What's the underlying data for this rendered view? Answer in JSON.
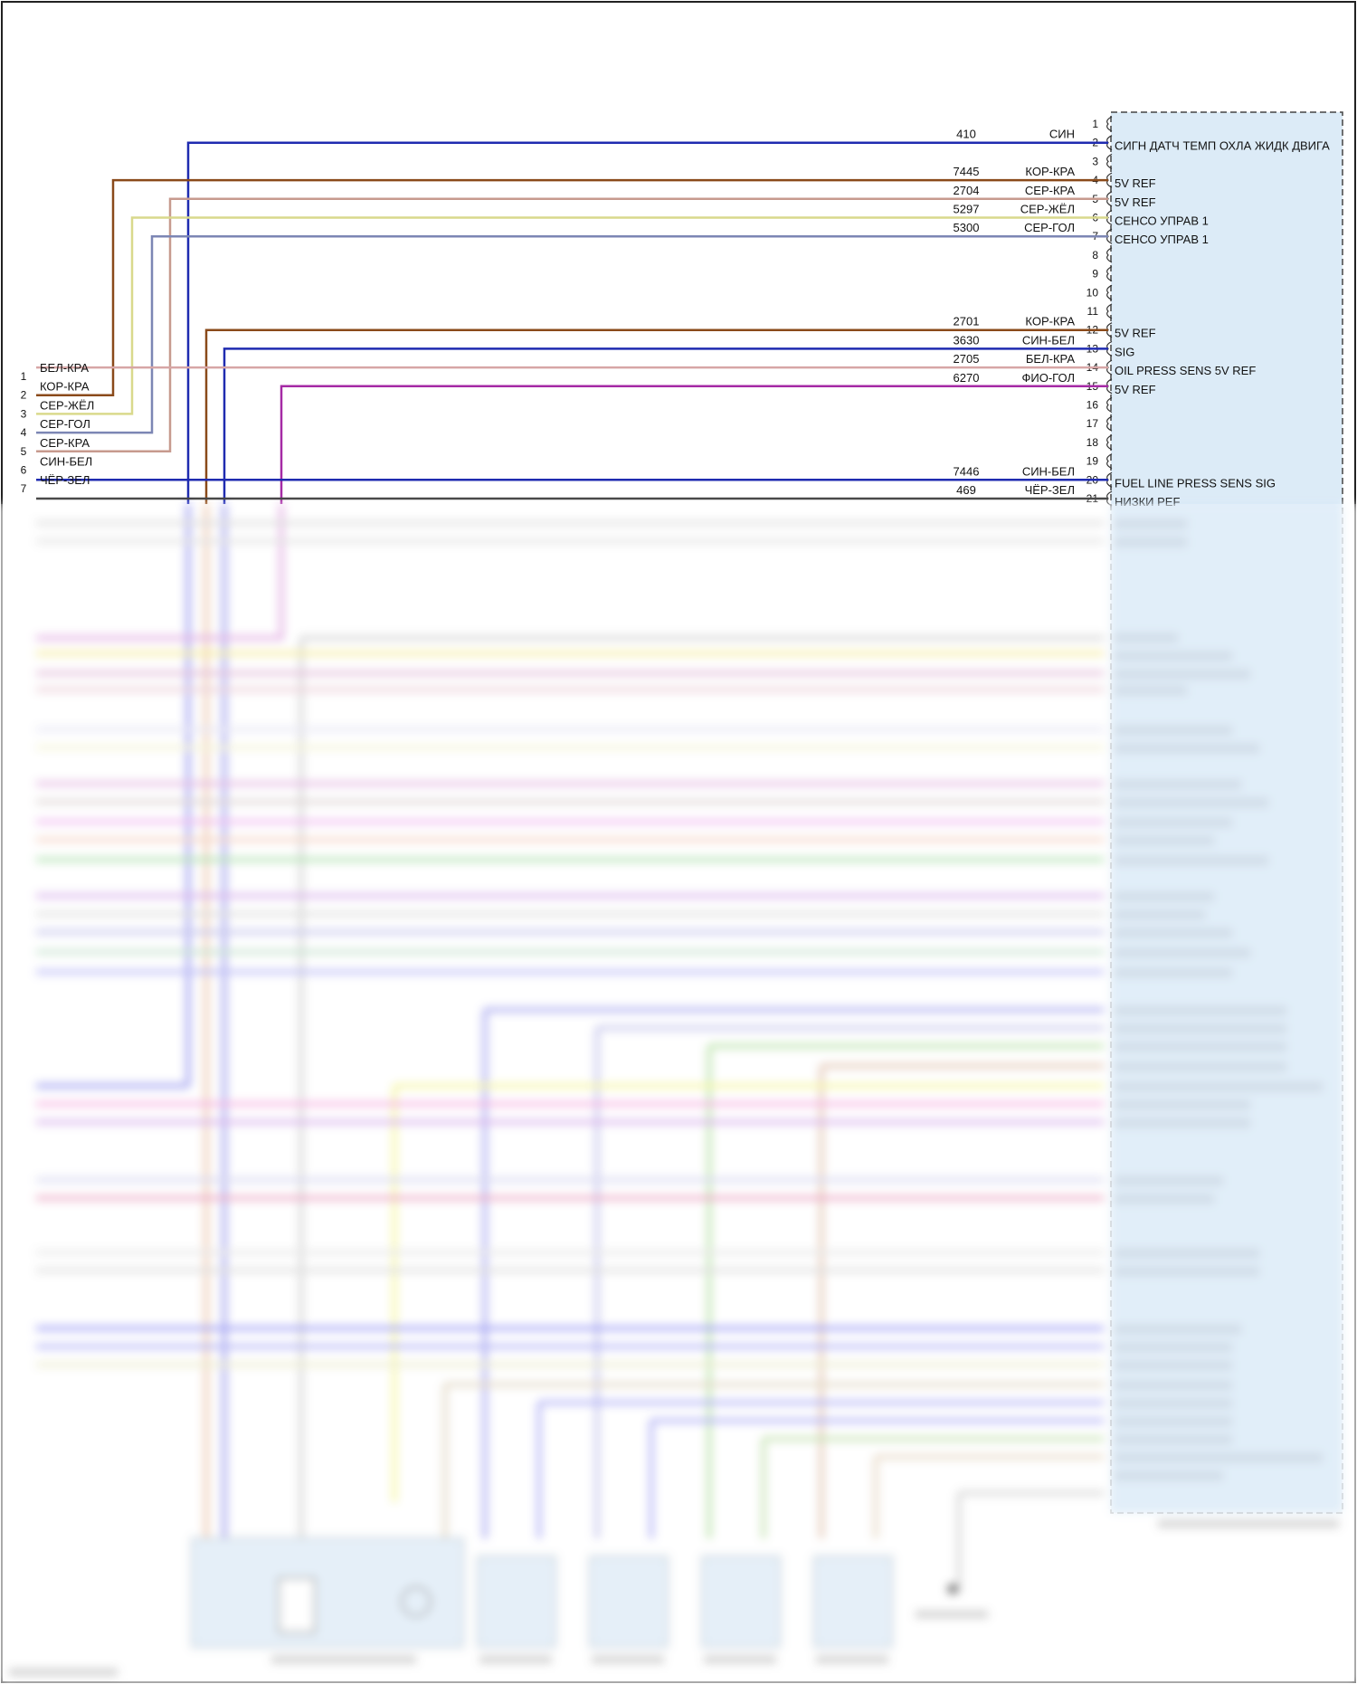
{
  "left_pins": [
    {
      "num": "1",
      "color_label": "БЕЛ-КРА"
    },
    {
      "num": "2",
      "color_label": "КОР-КРА"
    },
    {
      "num": "3",
      "color_label": "СЕР-ЖЁЛ"
    },
    {
      "num": "4",
      "color_label": "СЕР-ГОЛ"
    },
    {
      "num": "5",
      "color_label": "СЕР-КРА"
    },
    {
      "num": "6",
      "color_label": "СИН-БЕЛ"
    },
    {
      "num": "7",
      "color_label": "ЧЁР-ЗЕЛ"
    }
  ],
  "ecm_pins": [
    "1",
    "2",
    "3",
    "4",
    "5",
    "6",
    "7",
    "8",
    "9",
    "10",
    "11",
    "12",
    "13",
    "14",
    "15",
    "16",
    "17",
    "18",
    "19",
    "20",
    "21"
  ],
  "wires": [
    {
      "pin": "2",
      "circuit": "410",
      "color_label": "СИН",
      "signal": "СИГН ДАТЧ ТЕМП ОХЛА ЖИДК ДВИГА",
      "color": "#1f2bb0"
    },
    {
      "pin": "4",
      "circuit": "7445",
      "color_label": "КОР-КРА",
      "signal": "5V REF",
      "color": "#8a4a1a"
    },
    {
      "pin": "5",
      "circuit": "2704",
      "color_label": "СЕР-КРА",
      "signal": "5V REF",
      "color": "#c79a8e"
    },
    {
      "pin": "6",
      "circuit": "5297",
      "color_label": "СЕР-ЖЁЛ",
      "signal": "СЕНСО УПРАВ 1",
      "color": "#d9d98c"
    },
    {
      "pin": "7",
      "circuit": "5300",
      "color_label": "СЕР-ГОЛ",
      "signal": "СЕНСО УПРАВ 1",
      "color": "#7c86b4"
    },
    {
      "pin": "12",
      "circuit": "2701",
      "color_label": "КОР-КРА",
      "signal": "5V REF",
      "color": "#8a4a1a"
    },
    {
      "pin": "13",
      "circuit": "3630",
      "color_label": "СИН-БЕЛ",
      "signal": "SIG",
      "color": "#1f2bb0"
    },
    {
      "pin": "14",
      "circuit": "2705",
      "color_label": "БЕЛ-КРА",
      "signal": "OIL PRESS SENS 5V REF",
      "color": "#d7a6a6"
    },
    {
      "pin": "15",
      "circuit": "6270",
      "color_label": "ФИО-ГОЛ",
      "signal": "5V REF",
      "color": "#a52aa5"
    },
    {
      "pin": "20",
      "circuit": "7446",
      "color_label": "СИН-БЕЛ",
      "signal": "FUEL LINE PRESS SENS SIG",
      "color": "#1f2bb0"
    },
    {
      "pin": "21",
      "circuit": "469",
      "color_label": "ЧЁР-ЗЕЛ",
      "signal": "НИЗКИ РЕF",
      "color": "#3a3a3a"
    }
  ]
}
